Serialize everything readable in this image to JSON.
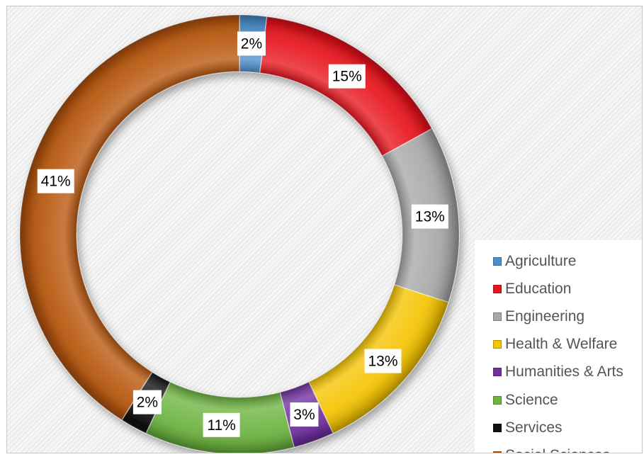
{
  "chart_data": {
    "type": "pie",
    "donut": true,
    "title": "",
    "legend_position": "right",
    "categories": [
      "Agriculture",
      "Education",
      "Engineering",
      "Health & Welfare",
      "Humanities & Arts",
      "Science",
      "Services",
      "Social Sciences"
    ],
    "values": [
      2,
      15,
      13,
      13,
      3,
      11,
      2,
      41
    ],
    "data_labels": [
      "2%",
      "15%",
      "13%",
      "13%",
      "3%",
      "11%",
      "2%",
      "41%"
    ],
    "colors": [
      "#4a8fce",
      "#e8141c",
      "#a8a8a8",
      "#f5c400",
      "#7030a0",
      "#6cb33f",
      "#111111",
      "#b8560c"
    ]
  }
}
